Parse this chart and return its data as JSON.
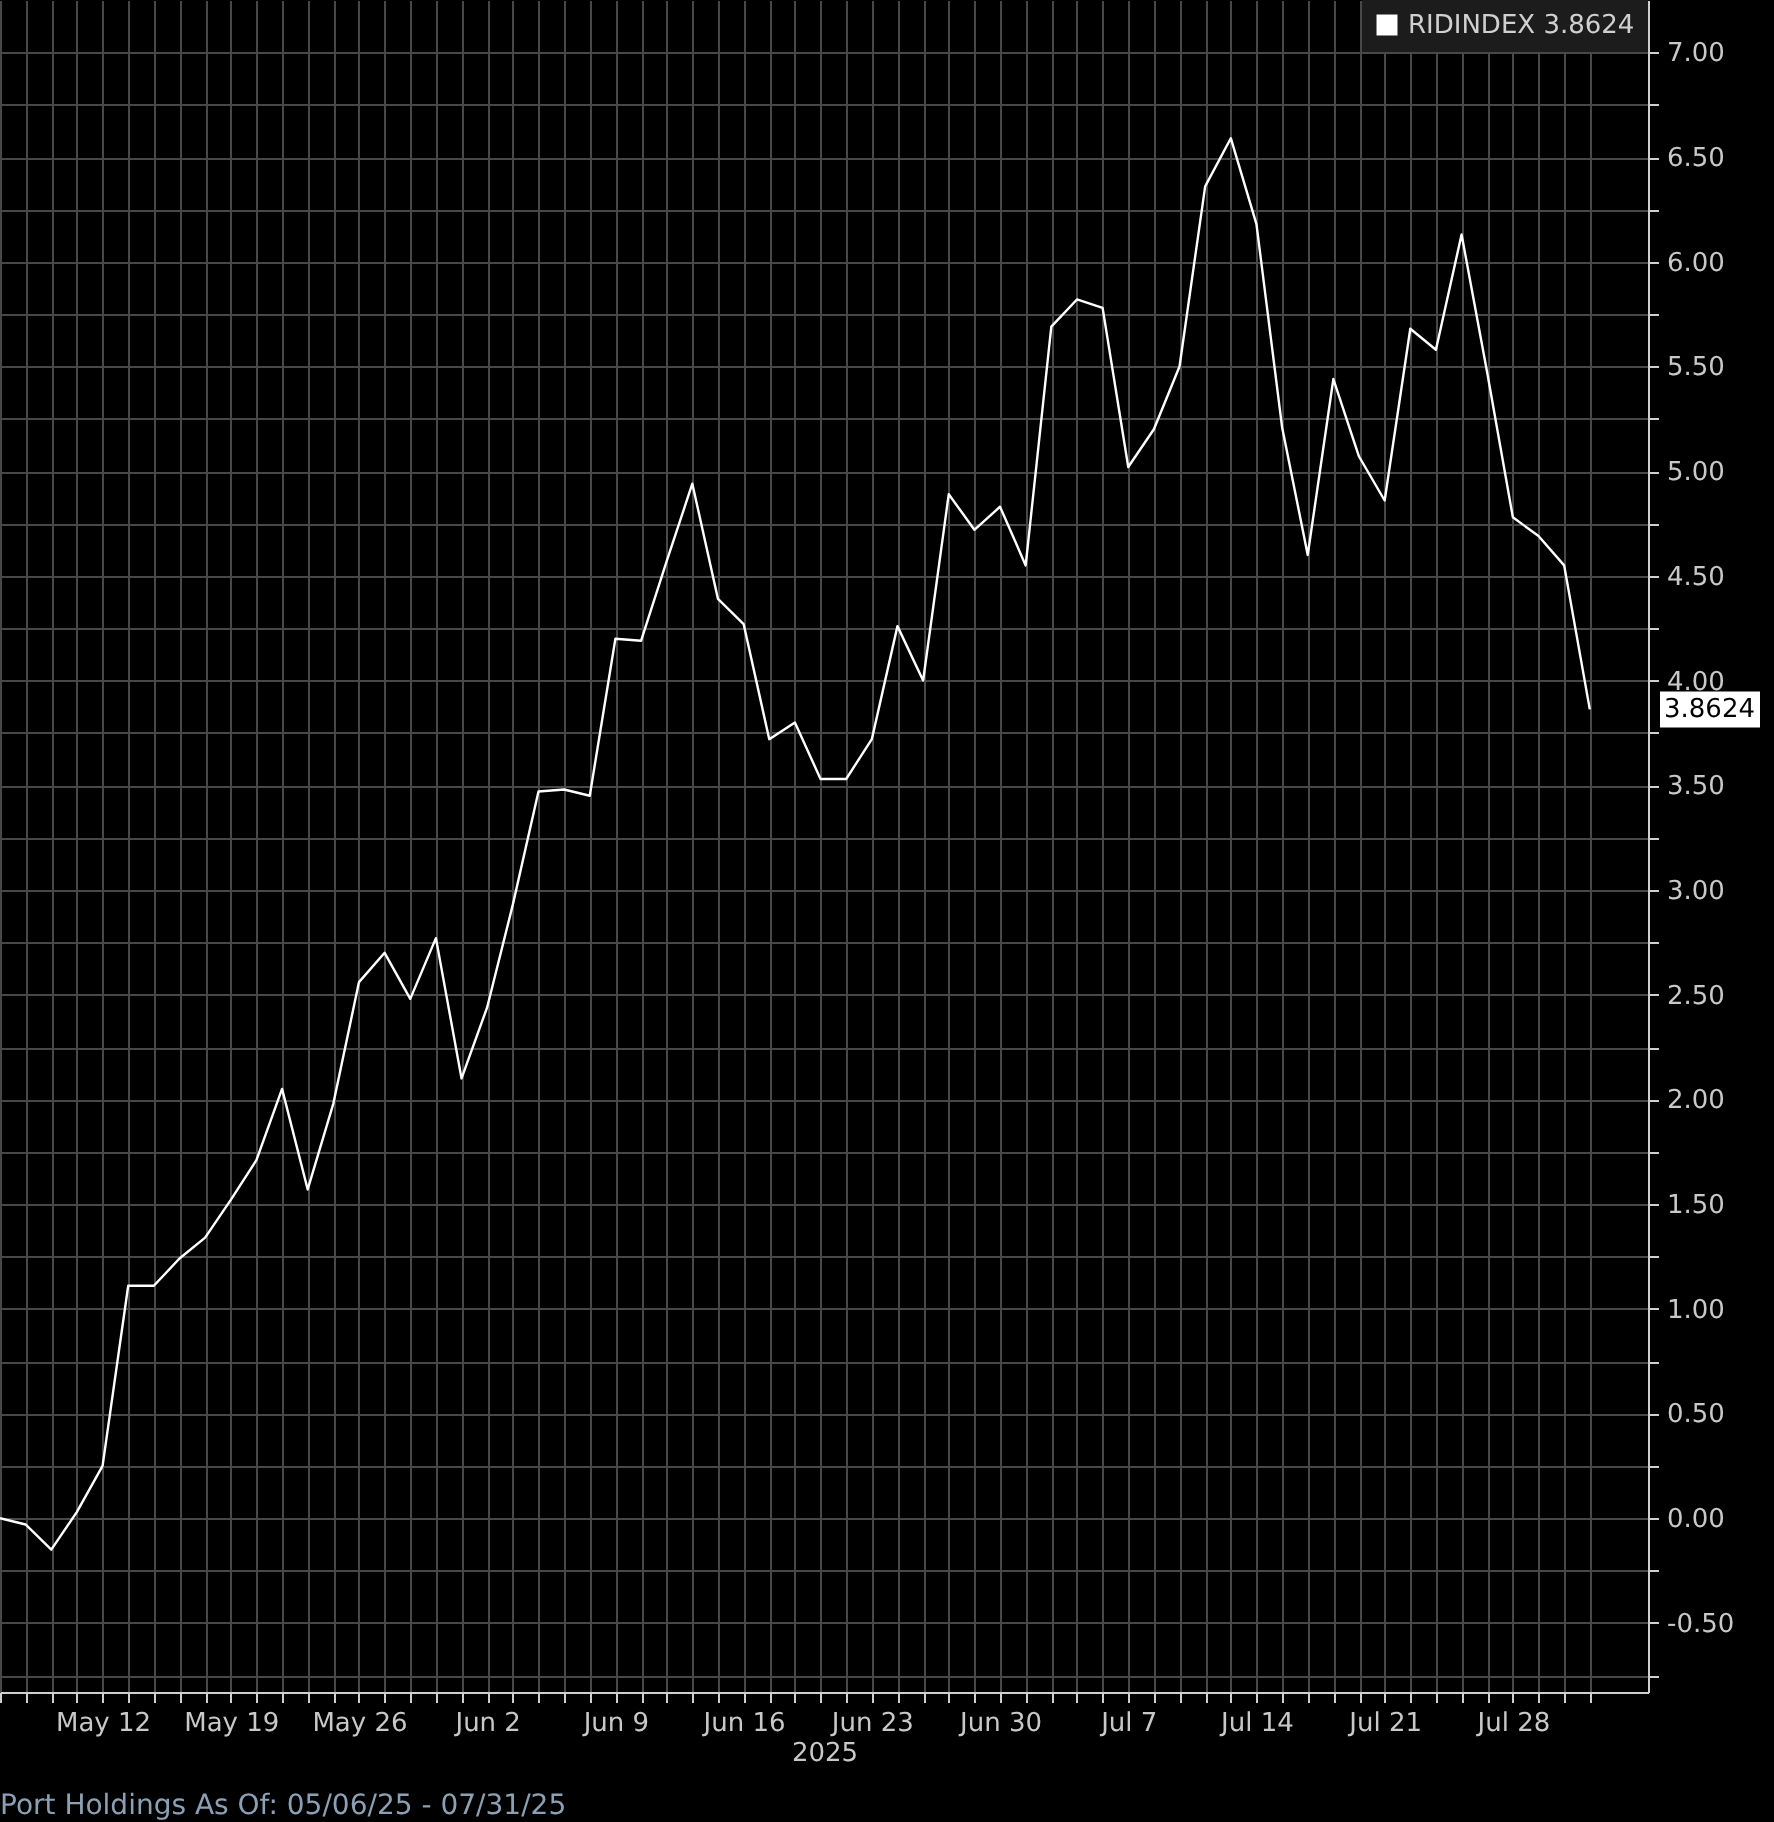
{
  "chart_data": {
    "type": "line",
    "xlabel": "2025",
    "categories": [
      null,
      null,
      null,
      null,
      "May 12",
      null,
      null,
      null,
      null,
      "May 19",
      null,
      null,
      null,
      null,
      "May 26",
      null,
      null,
      null,
      null,
      "Jun 2",
      null,
      null,
      null,
      null,
      "Jun 9",
      null,
      null,
      null,
      null,
      "Jun 16",
      null,
      null,
      null,
      null,
      "Jun 23",
      null,
      null,
      null,
      null,
      "Jun 30",
      null,
      null,
      null,
      null,
      "Jul 7",
      null,
      null,
      null,
      null,
      "Jul 14",
      null,
      null,
      null,
      null,
      "Jul 21",
      null,
      null,
      null,
      null,
      "Jul 28",
      null,
      null,
      null
    ],
    "series": [
      {
        "name": "RIDINDEX 3.8624",
        "color": "#ffffff",
        "values": [
          0.0,
          -0.03,
          -0.15,
          0.03,
          0.25,
          1.11,
          1.11,
          1.24,
          1.34,
          1.52,
          1.71,
          2.05,
          1.57,
          1.98,
          2.56,
          2.7,
          2.48,
          2.77,
          2.1,
          2.44,
          2.93,
          3.47,
          3.48,
          3.45,
          4.2,
          4.19,
          4.57,
          4.94,
          4.39,
          4.27,
          3.72,
          3.8,
          3.53,
          3.53,
          3.72,
          4.26,
          4.0,
          4.89,
          4.72,
          4.83,
          4.55,
          5.69,
          5.82,
          5.78,
          5.02,
          5.2,
          5.5,
          6.36,
          6.59,
          6.18,
          5.21,
          4.6,
          5.44,
          5.07,
          4.86,
          5.68,
          5.58,
          6.13,
          5.47,
          4.78,
          4.69,
          4.55,
          3.8624
        ]
      }
    ],
    "ylim": [
      -0.83,
      7.25
    ],
    "yticks": [
      {
        "value": -0.75,
        "label": null
      },
      {
        "value": -0.5,
        "label": "-0.50"
      },
      {
        "value": -0.25,
        "label": null
      },
      {
        "value": 0,
        "label": "0.00"
      },
      {
        "value": 0.25,
        "label": null
      },
      {
        "value": 0.5,
        "label": "0.50"
      },
      {
        "value": 0.75,
        "label": null
      },
      {
        "value": 1,
        "label": "1.00"
      },
      {
        "value": 1.25,
        "label": null
      },
      {
        "value": 1.5,
        "label": "1.50"
      },
      {
        "value": 1.75,
        "label": null
      },
      {
        "value": 2,
        "label": "2.00"
      },
      {
        "value": 2.25,
        "label": null
      },
      {
        "value": 2.5,
        "label": "2.50"
      },
      {
        "value": 2.75,
        "label": null
      },
      {
        "value": 3,
        "label": "3.00"
      },
      {
        "value": 3.25,
        "label": null
      },
      {
        "value": 3.5,
        "label": "3.50"
      },
      {
        "value": 3.75,
        "label": null
      },
      {
        "value": 4,
        "label": "4.00"
      },
      {
        "value": 4.25,
        "label": null
      },
      {
        "value": 4.5,
        "label": "4.50"
      },
      {
        "value": 4.75,
        "label": null
      },
      {
        "value": 5,
        "label": "5.00"
      },
      {
        "value": 5.25,
        "label": null
      },
      {
        "value": 5.5,
        "label": "5.50"
      },
      {
        "value": 5.75,
        "label": null
      },
      {
        "value": 6,
        "label": "6.00"
      },
      {
        "value": 6.25,
        "label": null
      },
      {
        "value": 6.5,
        "label": "6.50"
      },
      {
        "value": 6.75,
        "label": null
      },
      {
        "value": 7,
        "label": "7.00"
      }
    ],
    "grid": true,
    "legend": "top right",
    "annotations": [
      "Port Holdings As Of: 05/06/25 - 07/31/25",
      "3.8624"
    ]
  }
}
